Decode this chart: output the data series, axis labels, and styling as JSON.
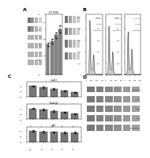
{
  "background_color": "#ffffff",
  "panel_labels": [
    "A",
    "B",
    "C",
    "D"
  ],
  "panel_label_fontsize": 5,
  "panel_label_color": "#000000"
}
